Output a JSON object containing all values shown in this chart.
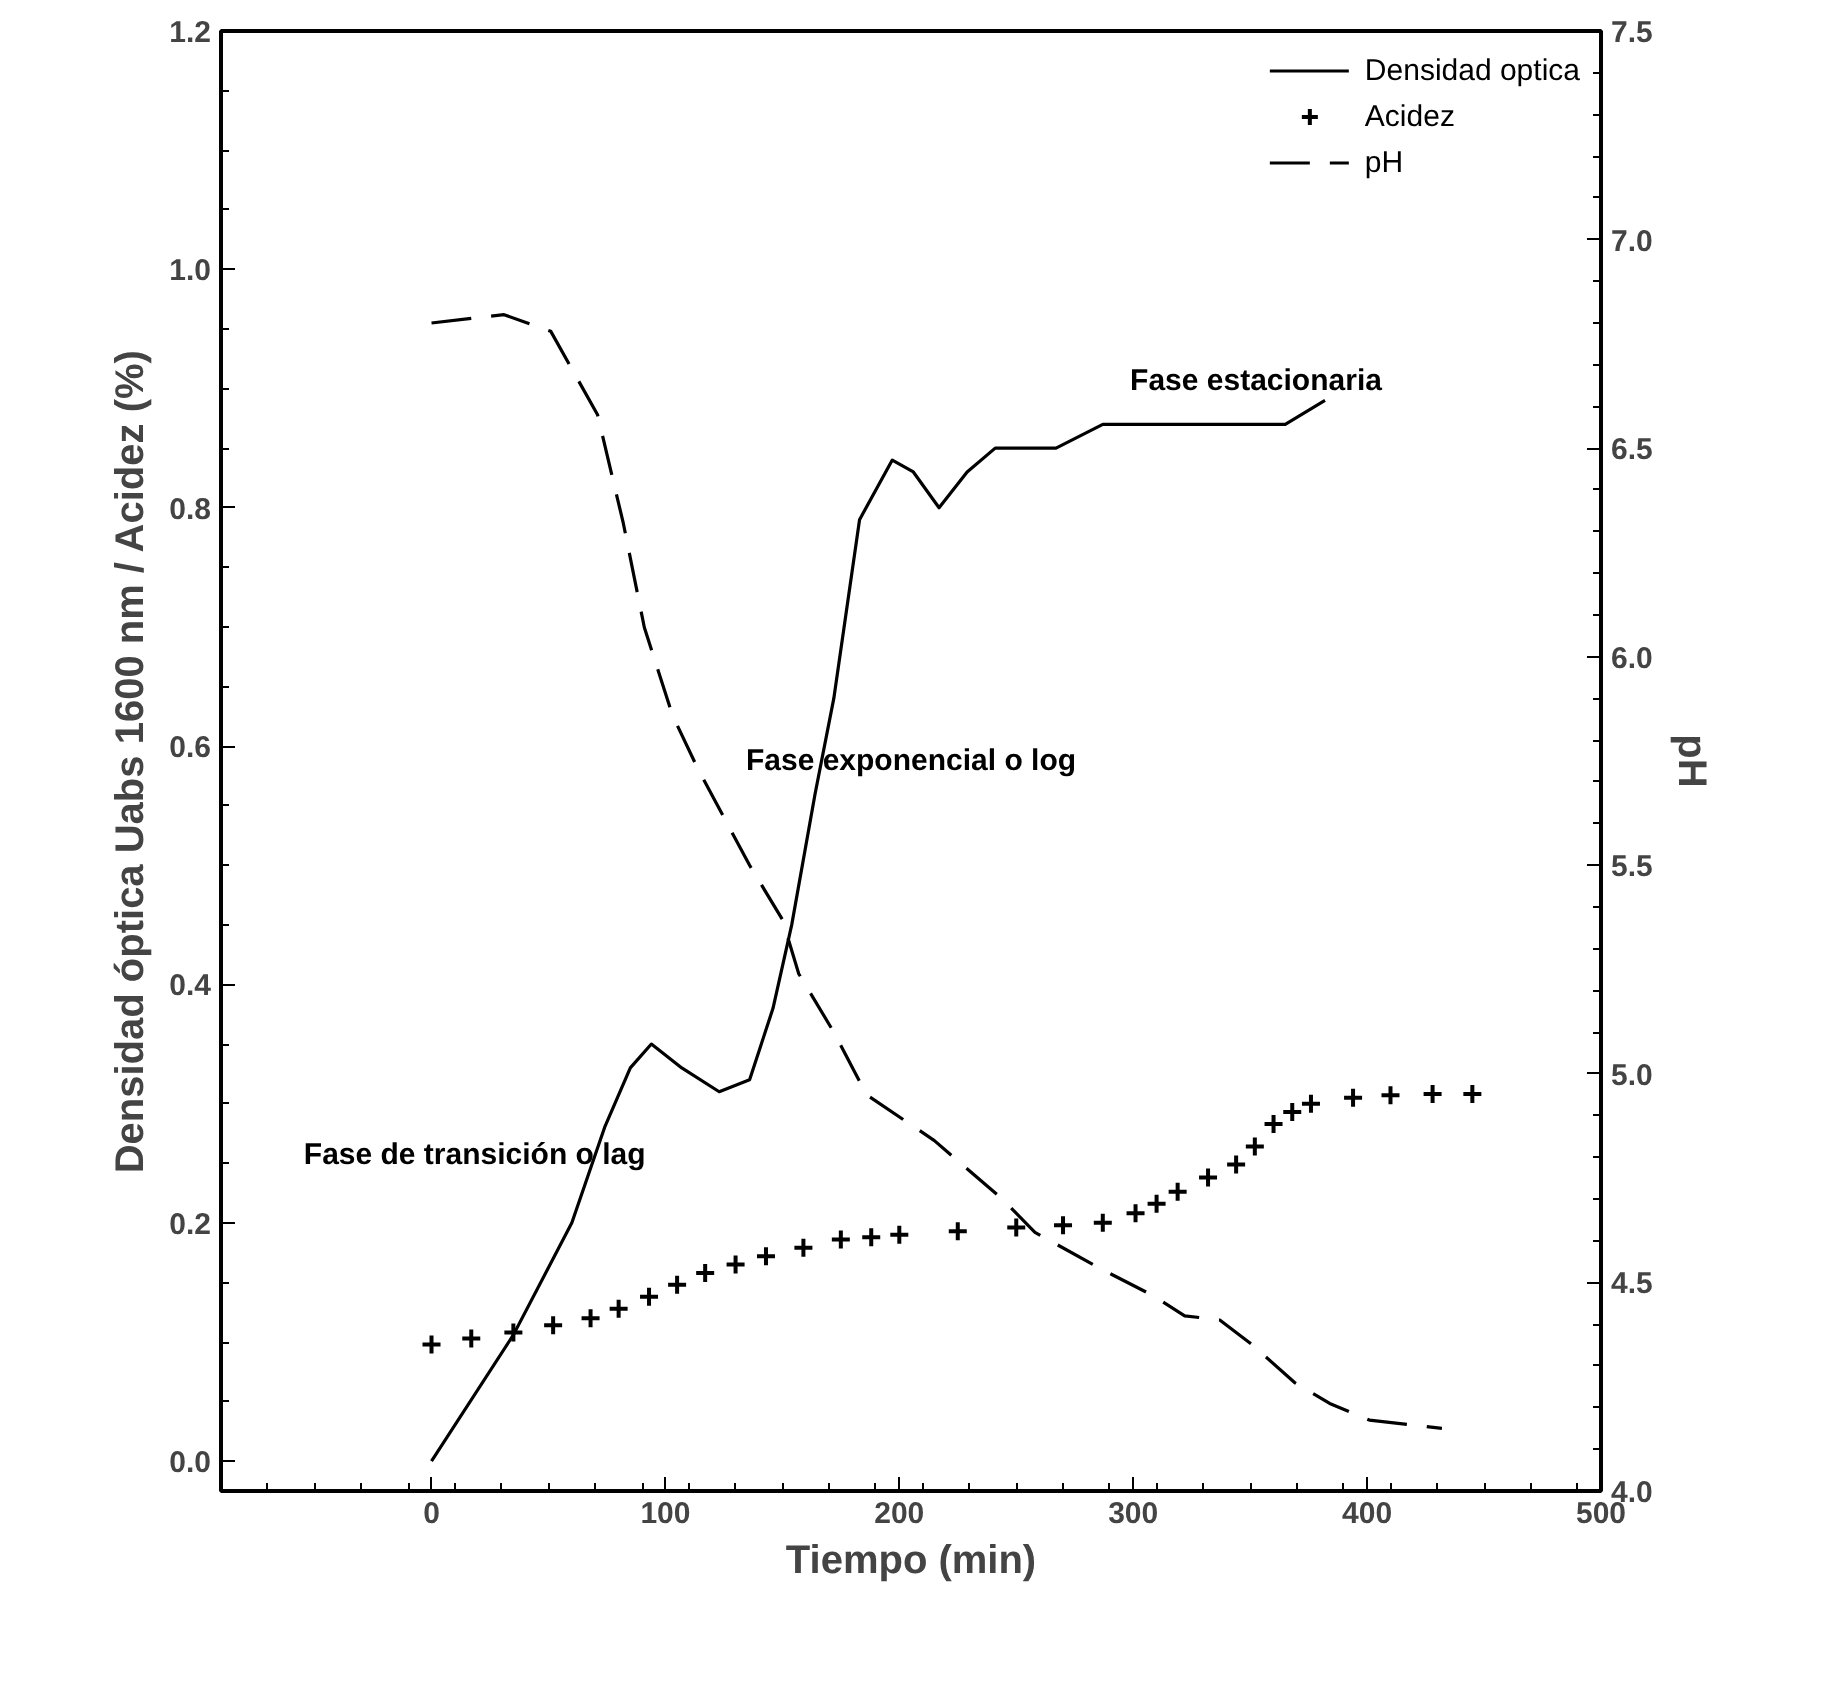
{
  "chart_data": {
    "type": "line",
    "xlabel": "Tiempo (min)",
    "ylabel": "Densidad óptica Uabs 1600 nm / Acidez (%)",
    "y2label": "pH",
    "xlim": [
      -90,
      500
    ],
    "xticks": [
      0,
      100,
      200,
      300,
      400,
      500
    ],
    "ylim": [
      -0.025,
      1.2
    ],
    "yticks": [
      {
        "value": 0,
        "label": "0.0"
      },
      0.2,
      0.4,
      0.6,
      0.8,
      {
        "value": 1,
        "label": "1.0"
      },
      1.2
    ],
    "y2lim": [
      4.0,
      7.5
    ],
    "y2ticks": [
      {
        "value": 4,
        "label": "4.0"
      },
      4.5,
      {
        "value": 5,
        "label": "5.0"
      },
      5.5,
      {
        "value": 6,
        "label": "6.0"
      },
      6.5,
      {
        "value": 7,
        "label": "7.0"
      },
      7.5
    ],
    "grid": false,
    "legend": "top right",
    "series": [
      {
        "name": "Densidad optica",
        "line_style": "solid",
        "color": "#000000",
        "x": [
          0,
          35,
          60,
          74,
          85,
          94,
          107,
          123,
          136,
          146,
          154,
          164,
          172,
          183,
          197,
          206,
          217,
          229,
          241,
          267,
          287,
          302,
          322,
          355,
          365,
          382
        ],
        "values": [
          0.0,
          0.106,
          0.2,
          0.28,
          0.33,
          0.35,
          0.33,
          0.31,
          0.32,
          0.38,
          0.45,
          0.56,
          0.64,
          0.79,
          0.84,
          0.83,
          0.8,
          0.83,
          0.85,
          0.85,
          0.87,
          0.87,
          0.87,
          0.87,
          0.87,
          0.89
        ]
      },
      {
        "name": "Acidez",
        "type": "scatter",
        "marker": "cross",
        "color": "#000000",
        "x": [
          0,
          17,
          35,
          52,
          68,
          80,
          93,
          105,
          117,
          130,
          143,
          159,
          175,
          188,
          200,
          225,
          250,
          270,
          287,
          301,
          310,
          319,
          332,
          344,
          352,
          360,
          368,
          376,
          394,
          410,
          428,
          445
        ],
        "values": [
          0.098,
          0.103,
          0.108,
          0.114,
          0.12,
          0.128,
          0.138,
          0.148,
          0.158,
          0.165,
          0.172,
          0.179,
          0.186,
          0.188,
          0.19,
          0.193,
          0.196,
          0.198,
          0.2,
          0.208,
          0.216,
          0.226,
          0.238,
          0.249,
          0.264,
          0.283,
          0.293,
          0.3,
          0.305,
          0.307,
          0.308,
          0.308
        ]
      },
      {
        "name": "pH",
        "line_style": "dashed",
        "axis": "y2",
        "color": "#000000",
        "x": [
          0,
          31,
          51,
          71,
          82,
          91,
          103,
          114,
          136,
          150,
          157,
          172,
          186,
          215,
          244,
          258,
          287,
          308,
          322,
          337,
          351,
          369,
          384,
          401,
          432
        ],
        "values": [
          6.8,
          6.82,
          6.78,
          6.58,
          6.32,
          6.07,
          5.86,
          5.73,
          5.5,
          5.37,
          5.24,
          5.1,
          4.95,
          4.84,
          4.7,
          4.62,
          4.53,
          4.47,
          4.42,
          4.41,
          4.35,
          4.26,
          4.21,
          4.17,
          4.15
        ]
      }
    ],
    "annotations": [
      "Fase estacionaria",
      "Fase exponencial o log",
      "Fase de transición o lag"
    ]
  }
}
